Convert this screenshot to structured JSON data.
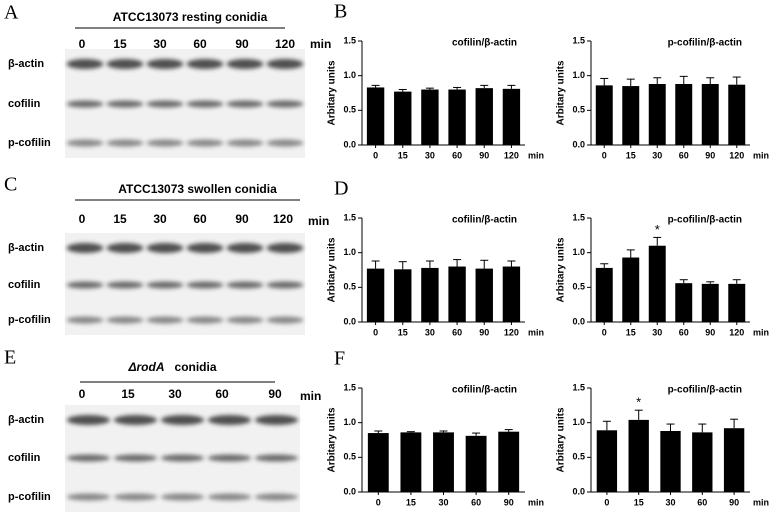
{
  "blots": [
    {
      "panel_label": "A",
      "header": "ATCC13073  resting conidia",
      "lanes": [
        "0",
        "15",
        "30",
        "60",
        "90",
        "120"
      ],
      "unit": "min",
      "rows": [
        "β-actin",
        "cofilin",
        "p-cofilin"
      ]
    },
    {
      "panel_label": "C",
      "header": "ATCC13073  swollen conidia",
      "lanes": [
        "0",
        "15",
        "30",
        "60",
        "90",
        "120"
      ],
      "unit": "min",
      "rows": [
        "β-actin",
        "cofilin",
        "p-cofilin"
      ]
    },
    {
      "panel_label": "E",
      "header_strain": "ΔrodA",
      "header": "conidia",
      "lanes": [
        "0",
        "15",
        "30",
        "60",
        "90"
      ],
      "unit": "min",
      "rows": [
        "β-actin",
        "cofilin",
        "p-cofilin"
      ]
    }
  ],
  "chart_data": [
    {
      "type": "bar",
      "panel_label": "B",
      "title": "cofilin/β-actin",
      "ylabel": "Arbitary units",
      "x_unit": "min",
      "categories": [
        "0",
        "15",
        "30",
        "60",
        "90",
        "120"
      ],
      "values": [
        0.83,
        0.77,
        0.8,
        0.8,
        0.82,
        0.81
      ],
      "errors": [
        0.03,
        0.03,
        0.02,
        0.03,
        0.04,
        0.05
      ],
      "color": "#000000",
      "ylim": [
        0,
        1.5
      ],
      "yticks": [
        {
          "value": 0,
          "label": "0.0"
        },
        0.5,
        {
          "value": 1,
          "label": "1.0"
        },
        1.5
      ]
    },
    {
      "type": "bar",
      "title": "p-cofilin/β-actin",
      "ylabel": "Arbitary units",
      "x_unit": "min",
      "categories": [
        "0",
        "15",
        "30",
        "60",
        "90",
        "120"
      ],
      "values": [
        0.86,
        0.85,
        0.88,
        0.88,
        0.88,
        0.87
      ],
      "errors": [
        0.1,
        0.1,
        0.09,
        0.11,
        0.09,
        0.11
      ],
      "color": "#000000",
      "ylim": [
        0,
        1.5
      ],
      "yticks": [
        {
          "value": 0,
          "label": "0.0"
        },
        0.5,
        {
          "value": 1,
          "label": "1.0"
        },
        1.5
      ]
    },
    {
      "type": "bar",
      "panel_label": "D",
      "title": "cofilin/β-actin",
      "ylabel": "Arbitary units",
      "x_unit": "min",
      "categories": [
        "0",
        "15",
        "30",
        "60",
        "90",
        "120"
      ],
      "values": [
        0.77,
        0.76,
        0.78,
        0.8,
        0.77,
        0.8
      ],
      "errors": [
        0.11,
        0.11,
        0.1,
        0.1,
        0.12,
        0.08
      ],
      "color": "#000000",
      "ylim": [
        0,
        1.5
      ],
      "yticks": [
        {
          "value": 0,
          "label": "0.0"
        },
        0.5,
        {
          "value": 1,
          "label": "1.0"
        },
        1.5
      ]
    },
    {
      "type": "bar",
      "title": "p-cofilin/β-actin",
      "ylabel": "Arbitary units",
      "x_unit": "min",
      "categories": [
        "0",
        "15",
        "30",
        "60",
        "90",
        "120"
      ],
      "values": [
        0.78,
        0.93,
        1.1,
        0.56,
        0.55,
        0.55
      ],
      "errors": [
        0.06,
        0.11,
        0.12,
        0.05,
        0.03,
        0.06
      ],
      "color": "#000000",
      "ylim": [
        0,
        1.5
      ],
      "yticks": [
        {
          "value": 0,
          "label": "0.0"
        },
        0.5,
        {
          "value": 1,
          "label": "1.0"
        },
        1.5
      ],
      "annotations": [
        {
          "category": "30",
          "text": "*"
        }
      ]
    },
    {
      "type": "bar",
      "panel_label": "F",
      "title": "cofilin/β-actin",
      "ylabel": "Arbitary units",
      "x_unit": "min",
      "categories": [
        "0",
        "15",
        "30",
        "60",
        "90"
      ],
      "values": [
        0.85,
        0.86,
        0.86,
        0.81,
        0.87
      ],
      "errors": [
        0.03,
        0.01,
        0.02,
        0.04,
        0.03
      ],
      "color": "#000000",
      "ylim": [
        0,
        1.5
      ],
      "yticks": [
        {
          "value": 0,
          "label": "0.0"
        },
        0.5,
        {
          "value": 1,
          "label": "1.0"
        },
        1.5
      ]
    },
    {
      "type": "bar",
      "title": "p-cofilin/β-actin",
      "ylabel": "Arbitary units",
      "x_unit": "min",
      "categories": [
        "0",
        "15",
        "30",
        "60",
        "90"
      ],
      "values": [
        0.89,
        1.04,
        0.88,
        0.86,
        0.92
      ],
      "errors": [
        0.13,
        0.14,
        0.1,
        0.12,
        0.13
      ],
      "color": "#000000",
      "ylim": [
        0,
        1.5
      ],
      "yticks": [
        {
          "value": 0,
          "label": "0.0"
        },
        0.5,
        {
          "value": 1,
          "label": "1.0"
        },
        1.5
      ],
      "annotations": [
        {
          "category": "15",
          "text": "*"
        }
      ]
    }
  ]
}
